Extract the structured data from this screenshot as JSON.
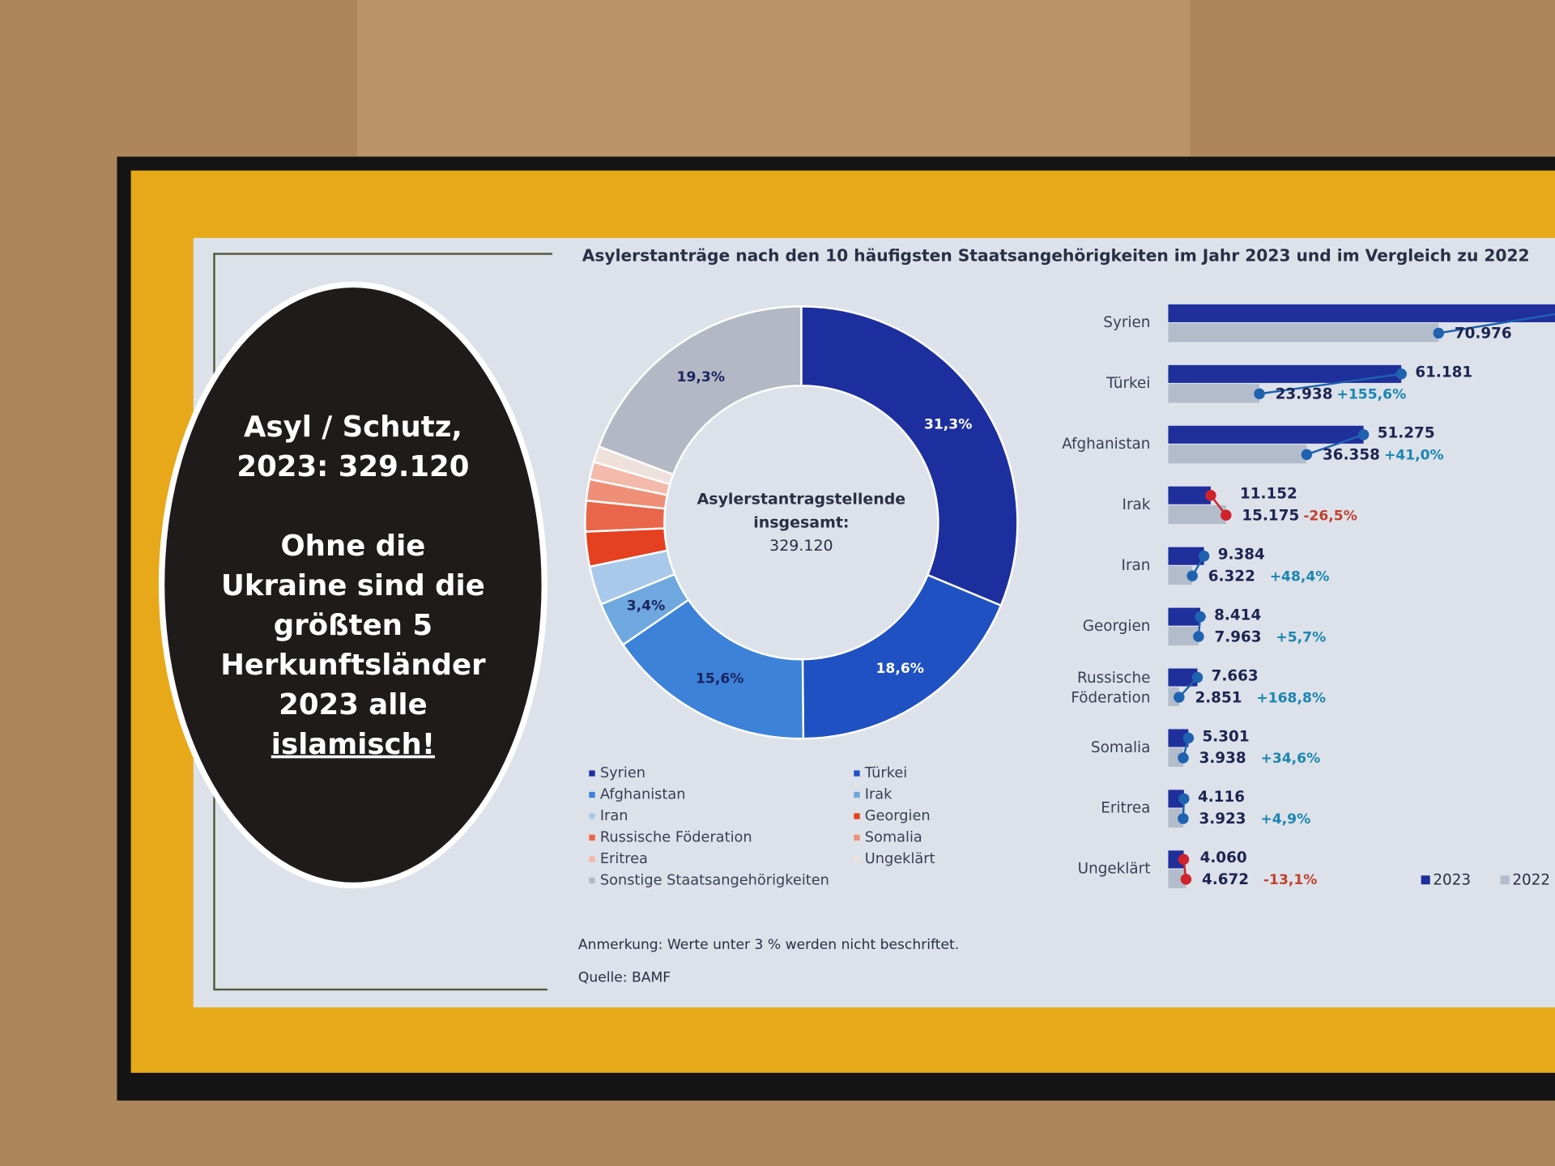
{
  "title": "Asylerstanträge nach den 10 häufigsten Staatsangehörigkeiten im Jahr 2023 und im Vergleich zu 2022",
  "callout": {
    "lines": [
      "Asyl / Schutz,",
      "2023: 329.120",
      "Ohne die",
      "Ukraine sind die",
      "größten 5",
      "Herkunftsländer",
      "2023 alle",
      "islamisch!"
    ]
  },
  "chart_data": [
    {
      "type": "donut",
      "center_text": [
        "Asylerstantragstellende",
        "insgesamt:",
        "329.120"
      ],
      "categories": [
        "Syrien",
        "Türkei",
        "Afghanistan",
        "Irak",
        "Iran",
        "Georgien",
        "Russische Föderation",
        "Somalia",
        "Eritrea",
        "Ungeklärt",
        "Sonstige Staatsangehörigkeiten"
      ],
      "values": [
        31.3,
        18.6,
        15.6,
        3.4,
        2.9,
        2.6,
        2.3,
        1.6,
        1.3,
        1.2,
        19.3
      ],
      "value_labels": [
        "31,3%",
        "18,6%",
        "15,6%",
        "3,4%",
        null,
        null,
        null,
        null,
        null,
        null,
        "19,3%"
      ],
      "colors": [
        "#1d2f9e",
        "#1f51c2",
        "#3c82d8",
        "#6ea8df",
        "#a9c9ea",
        "#e5401f",
        "#e9664a",
        "#ef8f78",
        "#f3b9aa",
        "#eee1dc",
        "#b3b8c4"
      ]
    },
    {
      "type": "bar",
      "categories": [
        "Syrien",
        "Türkei",
        "Afghanistan",
        "Irak",
        "Iran",
        "Georgien",
        "Russische Föderation",
        "Somalia",
        "Eritrea",
        "Ungeklärt"
      ],
      "series": [
        {
          "name": "2023",
          "color": "#1f2f9c",
          "values": [
            102930,
            61181,
            51275,
            11152,
            9384,
            8414,
            7663,
            5301,
            4116,
            4060
          ],
          "value_labels": [
            null,
            "61.181",
            "51.275",
            "11.152",
            "9.384",
            "8.414",
            "7.663",
            "5.301",
            "4.116",
            "4.060"
          ]
        },
        {
          "name": "2022",
          "color": "#b3bccb",
          "values": [
            70976,
            23938,
            36358,
            15175,
            6322,
            7963,
            2851,
            3938,
            3923,
            4672
          ],
          "value_labels": [
            "70.976",
            "23.938",
            "36.358",
            "15.175",
            "6.322",
            "7.963",
            "2.851",
            "3.938",
            "3.923",
            "4.672"
          ]
        }
      ],
      "change_labels": [
        null,
        "+155,6%",
        "+41,0%",
        "-26,5%",
        "+48,4%",
        "+5,7%",
        "+168,8%",
        "+34,6%",
        "+4,9%",
        "-13,1%"
      ],
      "increase_color": "#1e62b0",
      "decrease_color": "#d0222b"
    }
  ],
  "note": "Anmerkung: Werte unter 3 % werden nicht beschriftet.",
  "source": "Quelle: BAMF"
}
